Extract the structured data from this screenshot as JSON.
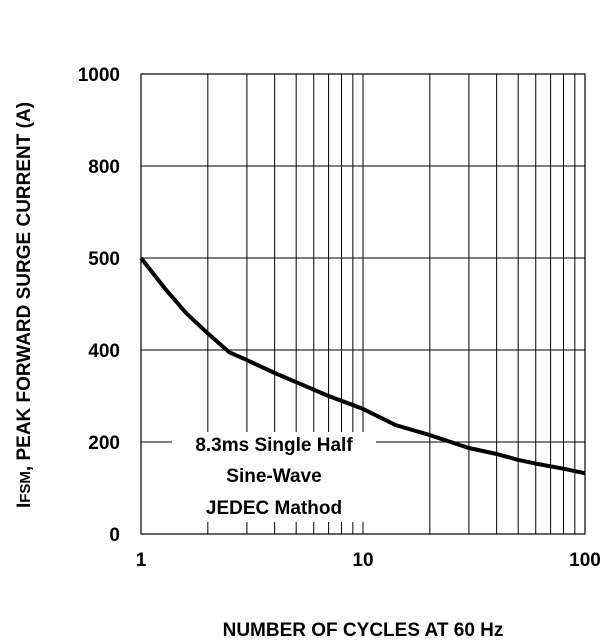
{
  "chart_data": {
    "type": "line",
    "x_scale": "log",
    "xlim": [
      1,
      100
    ],
    "ylim": [
      0,
      1000
    ],
    "grid": true,
    "xlabel": "NUMBER OF CYCLES AT 60 Hz",
    "ylabel_prefix": "I",
    "ylabel_sub": "FSM",
    "ylabel_rest": ", PEAK FORWARD SURGE CURRENT (A)",
    "x_ticks": [
      {
        "value": 1,
        "label": "1"
      },
      {
        "value": 10,
        "label": "10"
      },
      {
        "value": 100,
        "label": "100"
      }
    ],
    "y_ticks": [
      {
        "value": 0,
        "label": "0"
      },
      {
        "value": 200,
        "label": "200"
      },
      {
        "value": 400,
        "label": "400"
      },
      {
        "value": 500,
        "label": "500"
      },
      {
        "value": 800,
        "label": "800"
      },
      {
        "value": 1000,
        "label": "1000"
      }
    ],
    "annotation": [
      "8.3ms Single Half",
      "Sine-Wave",
      "JEDEC Mathod"
    ],
    "series": [
      {
        "x": [
          1,
          1.3,
          1.6,
          2,
          2.5,
          3,
          4,
          5,
          7,
          10,
          14,
          20,
          30,
          40,
          50,
          60,
          80,
          100
        ],
        "y": [
          500,
          465,
          440,
          418,
          395,
          378,
          350,
          330,
          300,
          272,
          237,
          215,
          187,
          174,
          161,
          153,
          142,
          132
        ]
      }
    ]
  }
}
